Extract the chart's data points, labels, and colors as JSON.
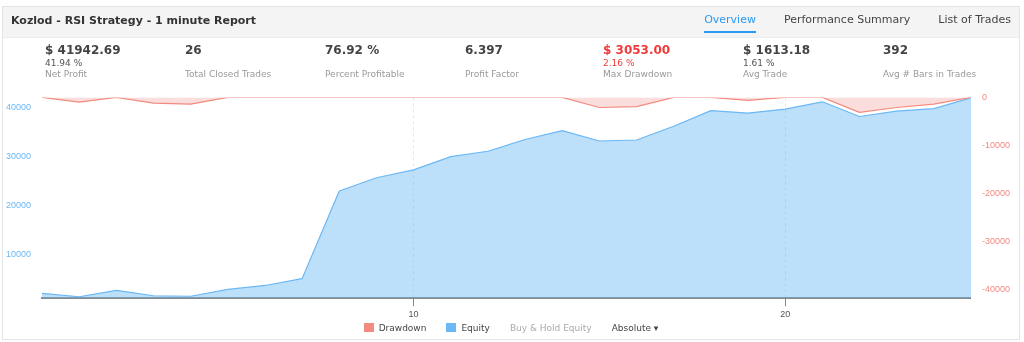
{
  "chart_data": {
    "type": "area",
    "title": "Kozlod - RSI Strategy - 1 minute Report",
    "x": [
      0,
      1,
      2,
      3,
      4,
      5,
      6,
      7,
      8,
      9,
      10,
      11,
      12,
      13,
      14,
      15,
      16,
      17,
      18,
      19,
      20,
      21,
      22,
      23,
      24,
      25
    ],
    "series": [
      {
        "name": "Drawdown",
        "axis": "y2",
        "color": "#f28a80",
        "values": [
          0,
          -1000,
          0,
          -1200,
          -1400,
          0,
          0,
          0,
          0,
          0,
          0,
          0,
          0,
          0,
          0,
          -2100,
          -1900,
          0,
          0,
          -600,
          0,
          0,
          -3100,
          -2100,
          -1400,
          0
        ]
      },
      {
        "name": "Equity",
        "color": "#6bb8f5",
        "values": [
          2000,
          1300,
          2600,
          1500,
          1400,
          2800,
          3600,
          5000,
          22900,
          25600,
          27200,
          29900,
          31000,
          33400,
          35200,
          33100,
          33300,
          36100,
          39300,
          38800,
          39600,
          41100,
          38100,
          39200,
          39700,
          41900
        ]
      }
    ],
    "xlim": [
      0,
      25
    ],
    "xticks": [
      10,
      20
    ],
    "ylim": [
      1000,
      42000
    ],
    "yticks": [
      10000,
      20000,
      30000,
      40000
    ],
    "y2lim": [
      -41700,
      0
    ],
    "y2ticks": [
      -40000,
      -30000,
      -20000,
      -10000,
      0
    ],
    "grid": "x",
    "legend": "bottom",
    "marker": "none",
    "annotations": [
      "Overview",
      "Performance Summary",
      "List of Trades",
      "$ 41942.69\n41.94 %\nNet Profit",
      "26\n\nTotal Closed Trades",
      "76.92 %\n\nPercent Profitable",
      "6.397\n\nProfit Factor",
      "$ 3053.00\n2.16 %\nMax Drawdown",
      "$ 1613.18\n1.61 %\nAvg Trade",
      "392\n\nAvg # Bars in Trades",
      "Buy & Hold Equity",
      "Absolute ▾"
    ]
  }
}
